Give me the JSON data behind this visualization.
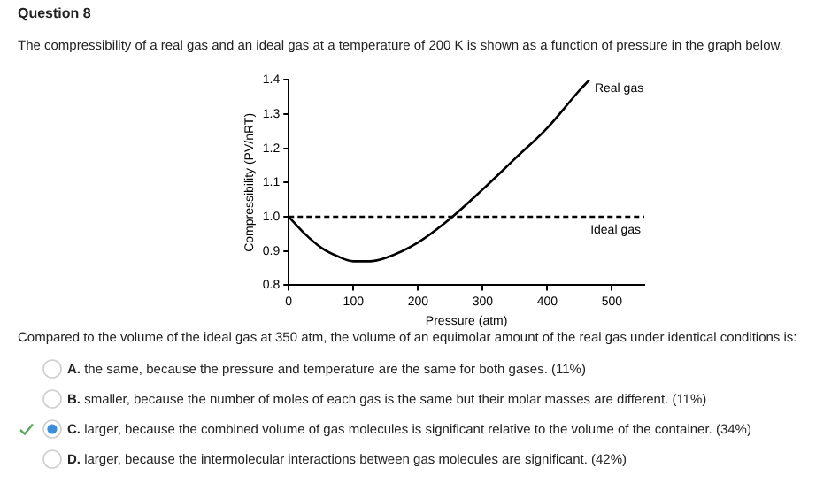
{
  "chart_data": {
    "type": "line",
    "title": "Question 8",
    "subtitle": "The compressibility of a real gas and an ideal gas at a temperature of 200 K is shown as a function of pressure in the graph below.",
    "xlabel": "Pressure (atm)",
    "ylabel": "Compressibility (PV/nRT)",
    "xlim": [
      0,
      550
    ],
    "xticks": [
      0,
      100,
      200,
      300,
      400,
      500
    ],
    "ylim": [
      0.8,
      1.4
    ],
    "yticks": [
      {
        "value": 0.8,
        "label": "0.8"
      },
      {
        "value": 0.9,
        "label": "0.9"
      },
      {
        "value": 1,
        "label": "1.0"
      },
      {
        "value": 1.1,
        "label": "1.1"
      },
      {
        "value": 1.2,
        "label": "1.2"
      },
      {
        "value": 1.3,
        "label": "1.3"
      },
      {
        "value": 1.4,
        "label": "1.4"
      }
    ],
    "marker": "none",
    "series": [
      {
        "name": "Real gas",
        "color": "#000000",
        "x": [
          0,
          25,
          50,
          75,
          100,
          125,
          150,
          200,
          250,
          300,
          350,
          400,
          450,
          465
        ],
        "values": [
          1.0,
          0.95,
          0.91,
          0.885,
          0.87,
          0.87,
          0.88,
          0.925,
          0.995,
          1.08,
          1.17,
          1.26,
          1.37,
          1.4
        ]
      },
      {
        "name": "Ideal gas",
        "color": "#000000",
        "line_style": "dashed",
        "x": [
          0,
          550
        ],
        "values": [
          1.0,
          1.0
        ]
      }
    ],
    "annotations": [
      "Compared to the volume of the ideal gas at 350 atm, the volume of an equimolar amount of the real gas under identical conditions is:",
      "A. the same, because the pressure and temperature are the same for both gases. (11%)",
      "B. smaller, because the number of moles of each gas is the same but their molar masses are different. (11%)",
      "C. larger, because the combined volume of gas molecules is significant relative to the volume of the container. (34%)",
      "D. larger, because the intermolecular interactions between gas molecules are significant. (42%)"
    ]
  }
}
